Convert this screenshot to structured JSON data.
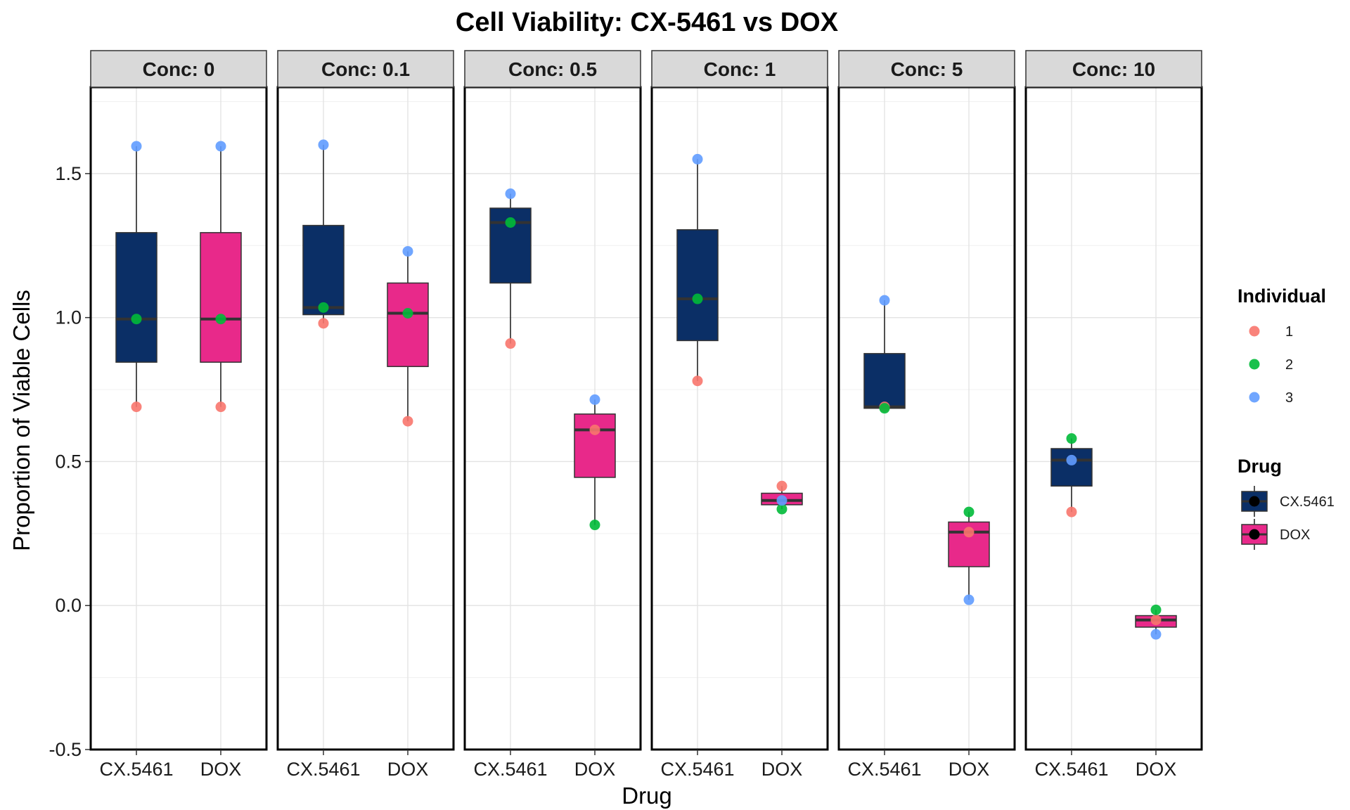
{
  "chart_data": {
    "type": "box",
    "title": "Cell Viability: CX-5461 vs DOX",
    "xlabel": "Drug",
    "ylabel": "Proportion of Viable Cells",
    "ylim": [
      -0.5,
      1.8
    ],
    "yticks": [
      -0.5,
      0.0,
      0.5,
      1.0,
      1.5
    ],
    "ytick_labels": [
      "-0.5",
      "0.0",
      "0.5",
      "1.0",
      "1.5"
    ],
    "grid": true,
    "legend_position": "right",
    "categories": [
      "CX.5461",
      "DOX"
    ],
    "facet_prefix": "Conc: ",
    "facets": [
      {
        "label": "Conc: 0",
        "groups": [
          {
            "drug": "CX.5461",
            "box": {
              "min": 0.69,
              "q1": 0.845,
              "median": 0.995,
              "q3": 1.295,
              "max": 1.595
            },
            "points": [
              {
                "individual": "1",
                "value": 0.69
              },
              {
                "individual": "2",
                "value": 0.995
              },
              {
                "individual": "3",
                "value": 1.595
              }
            ]
          },
          {
            "drug": "DOX",
            "box": {
              "min": 0.69,
              "q1": 0.845,
              "median": 0.995,
              "q3": 1.295,
              "max": 1.595
            },
            "points": [
              {
                "individual": "1",
                "value": 0.69
              },
              {
                "individual": "2",
                "value": 0.995
              },
              {
                "individual": "3",
                "value": 1.595
              }
            ]
          }
        ]
      },
      {
        "label": "Conc: 0.1",
        "groups": [
          {
            "drug": "CX.5461",
            "box": {
              "min": 0.98,
              "q1": 1.01,
              "median": 1.035,
              "q3": 1.32,
              "max": 1.6
            },
            "points": [
              {
                "individual": "1",
                "value": 0.98
              },
              {
                "individual": "2",
                "value": 1.035
              },
              {
                "individual": "3",
                "value": 1.6
              }
            ]
          },
          {
            "drug": "DOX",
            "box": {
              "min": 0.64,
              "q1": 0.83,
              "median": 1.015,
              "q3": 1.12,
              "max": 1.23
            },
            "points": [
              {
                "individual": "1",
                "value": 0.64
              },
              {
                "individual": "2",
                "value": 1.015
              },
              {
                "individual": "3",
                "value": 1.23
              }
            ]
          }
        ]
      },
      {
        "label": "Conc: 0.5",
        "groups": [
          {
            "drug": "CX.5461",
            "box": {
              "min": 0.91,
              "q1": 1.12,
              "median": 1.33,
              "q3": 1.38,
              "max": 1.43
            },
            "points": [
              {
                "individual": "1",
                "value": 0.91
              },
              {
                "individual": "2",
                "value": 1.33
              },
              {
                "individual": "3",
                "value": 1.43
              }
            ]
          },
          {
            "drug": "DOX",
            "box": {
              "min": 0.28,
              "q1": 0.445,
              "median": 0.61,
              "q3": 0.665,
              "max": 0.715
            },
            "points": [
              {
                "individual": "1",
                "value": 0.61
              },
              {
                "individual": "2",
                "value": 0.28
              },
              {
                "individual": "3",
                "value": 0.715
              }
            ]
          }
        ]
      },
      {
        "label": "Conc: 1",
        "groups": [
          {
            "drug": "CX.5461",
            "box": {
              "min": 0.78,
              "q1": 0.92,
              "median": 1.065,
              "q3": 1.305,
              "max": 1.55
            },
            "points": [
              {
                "individual": "1",
                "value": 0.78
              },
              {
                "individual": "2",
                "value": 1.065
              },
              {
                "individual": "3",
                "value": 1.55
              }
            ]
          },
          {
            "drug": "DOX",
            "box": {
              "min": 0.335,
              "q1": 0.35,
              "median": 0.365,
              "q3": 0.39,
              "max": 0.415
            },
            "points": [
              {
                "individual": "1",
                "value": 0.415
              },
              {
                "individual": "2",
                "value": 0.335
              },
              {
                "individual": "3",
                "value": 0.365
              }
            ]
          }
        ]
      },
      {
        "label": "Conc: 5",
        "groups": [
          {
            "drug": "CX.5461",
            "box": {
              "min": 0.685,
              "q1": 0.685,
              "median": 0.69,
              "q3": 0.875,
              "max": 1.06
            },
            "points": [
              {
                "individual": "1",
                "value": 0.69
              },
              {
                "individual": "2",
                "value": 0.685
              },
              {
                "individual": "3",
                "value": 1.06
              }
            ]
          },
          {
            "drug": "DOX",
            "box": {
              "min": 0.02,
              "q1": 0.135,
              "median": 0.255,
              "q3": 0.29,
              "max": 0.325
            },
            "points": [
              {
                "individual": "1",
                "value": 0.255
              },
              {
                "individual": "2",
                "value": 0.325
              },
              {
                "individual": "3",
                "value": 0.02
              }
            ]
          }
        ]
      },
      {
        "label": "Conc: 10",
        "groups": [
          {
            "drug": "CX.5461",
            "box": {
              "min": 0.325,
              "q1": 0.415,
              "median": 0.505,
              "q3": 0.545,
              "max": 0.58
            },
            "points": [
              {
                "individual": "1",
                "value": 0.325
              },
              {
                "individual": "2",
                "value": 0.58
              },
              {
                "individual": "3",
                "value": 0.505
              }
            ]
          },
          {
            "drug": "DOX",
            "box": {
              "min": -0.1,
              "q1": -0.075,
              "median": -0.05,
              "q3": -0.035,
              "max": -0.015
            },
            "points": [
              {
                "individual": "1",
                "value": -0.05
              },
              {
                "individual": "2",
                "value": -0.015
              },
              {
                "individual": "3",
                "value": -0.1
              }
            ]
          }
        ]
      }
    ],
    "legend": {
      "individual_title": "Individual",
      "individuals": [
        {
          "label": "1",
          "color": "#F8766D"
        },
        {
          "label": "2",
          "color": "#00BA38"
        },
        {
          "label": "3",
          "color": "#619CFF"
        }
      ],
      "drug_title": "Drug",
      "drugs": [
        {
          "label": "CX.5461",
          "color": "#0B2F66"
        },
        {
          "label": "DOX",
          "color": "#E8298A"
        }
      ]
    }
  }
}
